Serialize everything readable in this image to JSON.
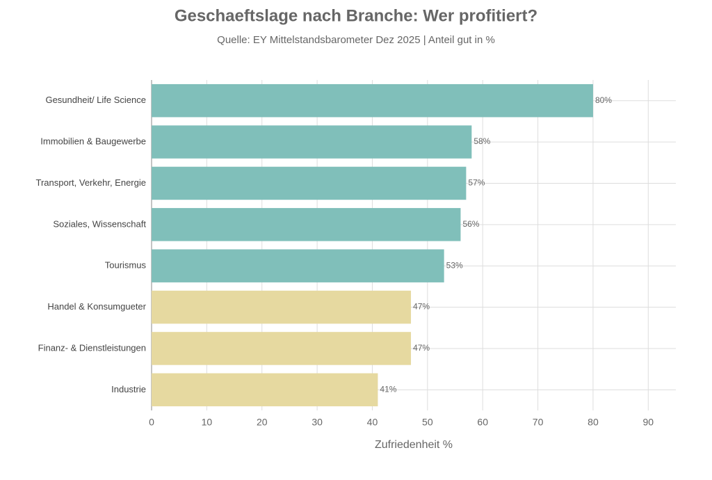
{
  "chart_data": {
    "type": "bar",
    "orientation": "horizontal",
    "title": "Geschaeftslage nach Branche: Wer profitiert?",
    "subtitle": "Quelle: EY Mittelstandsbarometer Dez 2025 | Anteil gut in %",
    "x_label": "Zufriedenheit %",
    "categories": [
      "Gesundheit/ Life Science",
      "Immobilien & Baugewerbe",
      "Transport, Verkehr, Energie",
      "Soziales, Wissenschaft",
      "Tourismus",
      "Handel & Konsumgueter",
      "Finanz- & Dienstleistungen",
      "Industrie"
    ],
    "values": [
      80,
      58,
      57,
      56,
      53,
      47,
      47,
      41
    ],
    "value_labels": [
      "80%",
      "58%",
      "57%",
      "56%",
      "53%",
      "47%",
      "47%",
      "41%"
    ],
    "colors": [
      "#80bfba",
      "#80bfba",
      "#80bfba",
      "#80bfba",
      "#80bfba",
      "#e6d9a0",
      "#e6d9a0",
      "#e6d9a0"
    ],
    "xlim": [
      0,
      95
    ],
    "xticks": [
      0,
      10,
      20,
      30,
      40,
      50,
      60,
      70,
      80,
      90
    ],
    "grid": true
  }
}
